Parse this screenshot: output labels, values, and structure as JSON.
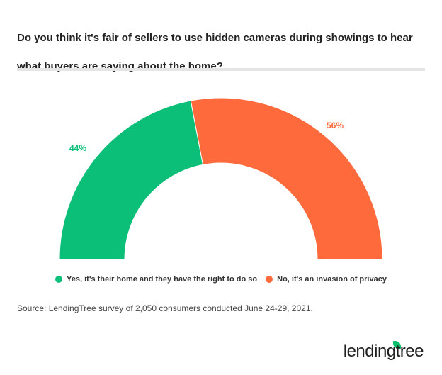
{
  "chart_data": {
    "type": "pie",
    "variant": "semi-donut",
    "title": "Do you think it's fair of sellers to use hidden cameras during showings to hear what buyers are saying about the home?",
    "categories": [
      "Yes, it's their home and they have the right to do so",
      "No, it's an invasion of privacy"
    ],
    "values": [
      44,
      56
    ],
    "data_labels": [
      "44%",
      "56%"
    ],
    "colors": [
      "#0cbf79",
      "#ff6a3d"
    ],
    "legend_position": "bottom"
  },
  "source": "Source: LendingTree survey of 2,050 consumers conducted June 24-29, 2021.",
  "logo": "lendingtree"
}
